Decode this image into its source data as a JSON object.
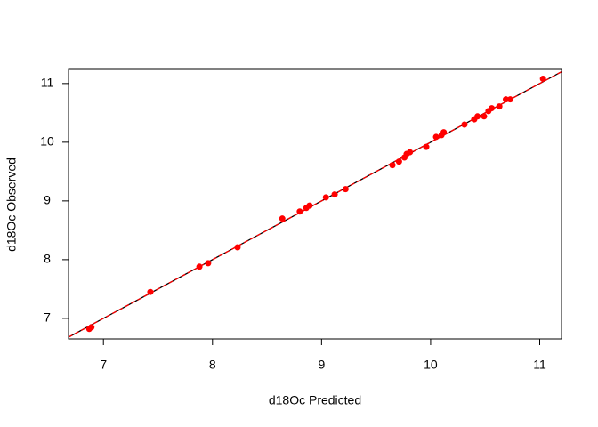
{
  "chart_data": {
    "type": "scatter",
    "x_label": "d18Oc Predicted",
    "y_label": "d18Oc Observed",
    "color": "#ff0000",
    "xlim": [
      6.68,
      11.2
    ],
    "ylim": [
      6.65,
      11.24
    ],
    "xticks": [
      7,
      8,
      9,
      10,
      11
    ],
    "yticks": [
      7,
      8,
      9,
      10,
      11
    ],
    "lines": [
      {
        "intercept": 0,
        "slope": 1,
        "color": "#000000",
        "dashed": false
      },
      {
        "intercept": 0,
        "slope": 1,
        "color": "#ff0000",
        "dashed": true
      }
    ],
    "x": [
      6.87,
      6.89,
      7.43,
      7.88,
      7.96,
      8.23,
      8.64,
      8.8,
      8.86,
      8.89,
      9.04,
      9.12,
      9.22,
      9.65,
      9.71,
      9.76,
      9.78,
      9.81,
      9.96,
      10.05,
      10.1,
      10.12,
      10.31,
      10.4,
      10.43,
      10.49,
      10.53,
      10.56,
      10.63,
      10.69,
      10.73,
      11.03
    ],
    "y": [
      6.82,
      6.85,
      7.45,
      7.88,
      7.94,
      8.21,
      8.7,
      8.82,
      8.88,
      8.92,
      9.06,
      9.11,
      9.2,
      9.61,
      9.67,
      9.74,
      9.8,
      9.83,
      9.92,
      10.09,
      10.12,
      10.17,
      10.3,
      10.39,
      10.44,
      10.44,
      10.53,
      10.58,
      10.61,
      10.73,
      10.73,
      11.08
    ]
  }
}
